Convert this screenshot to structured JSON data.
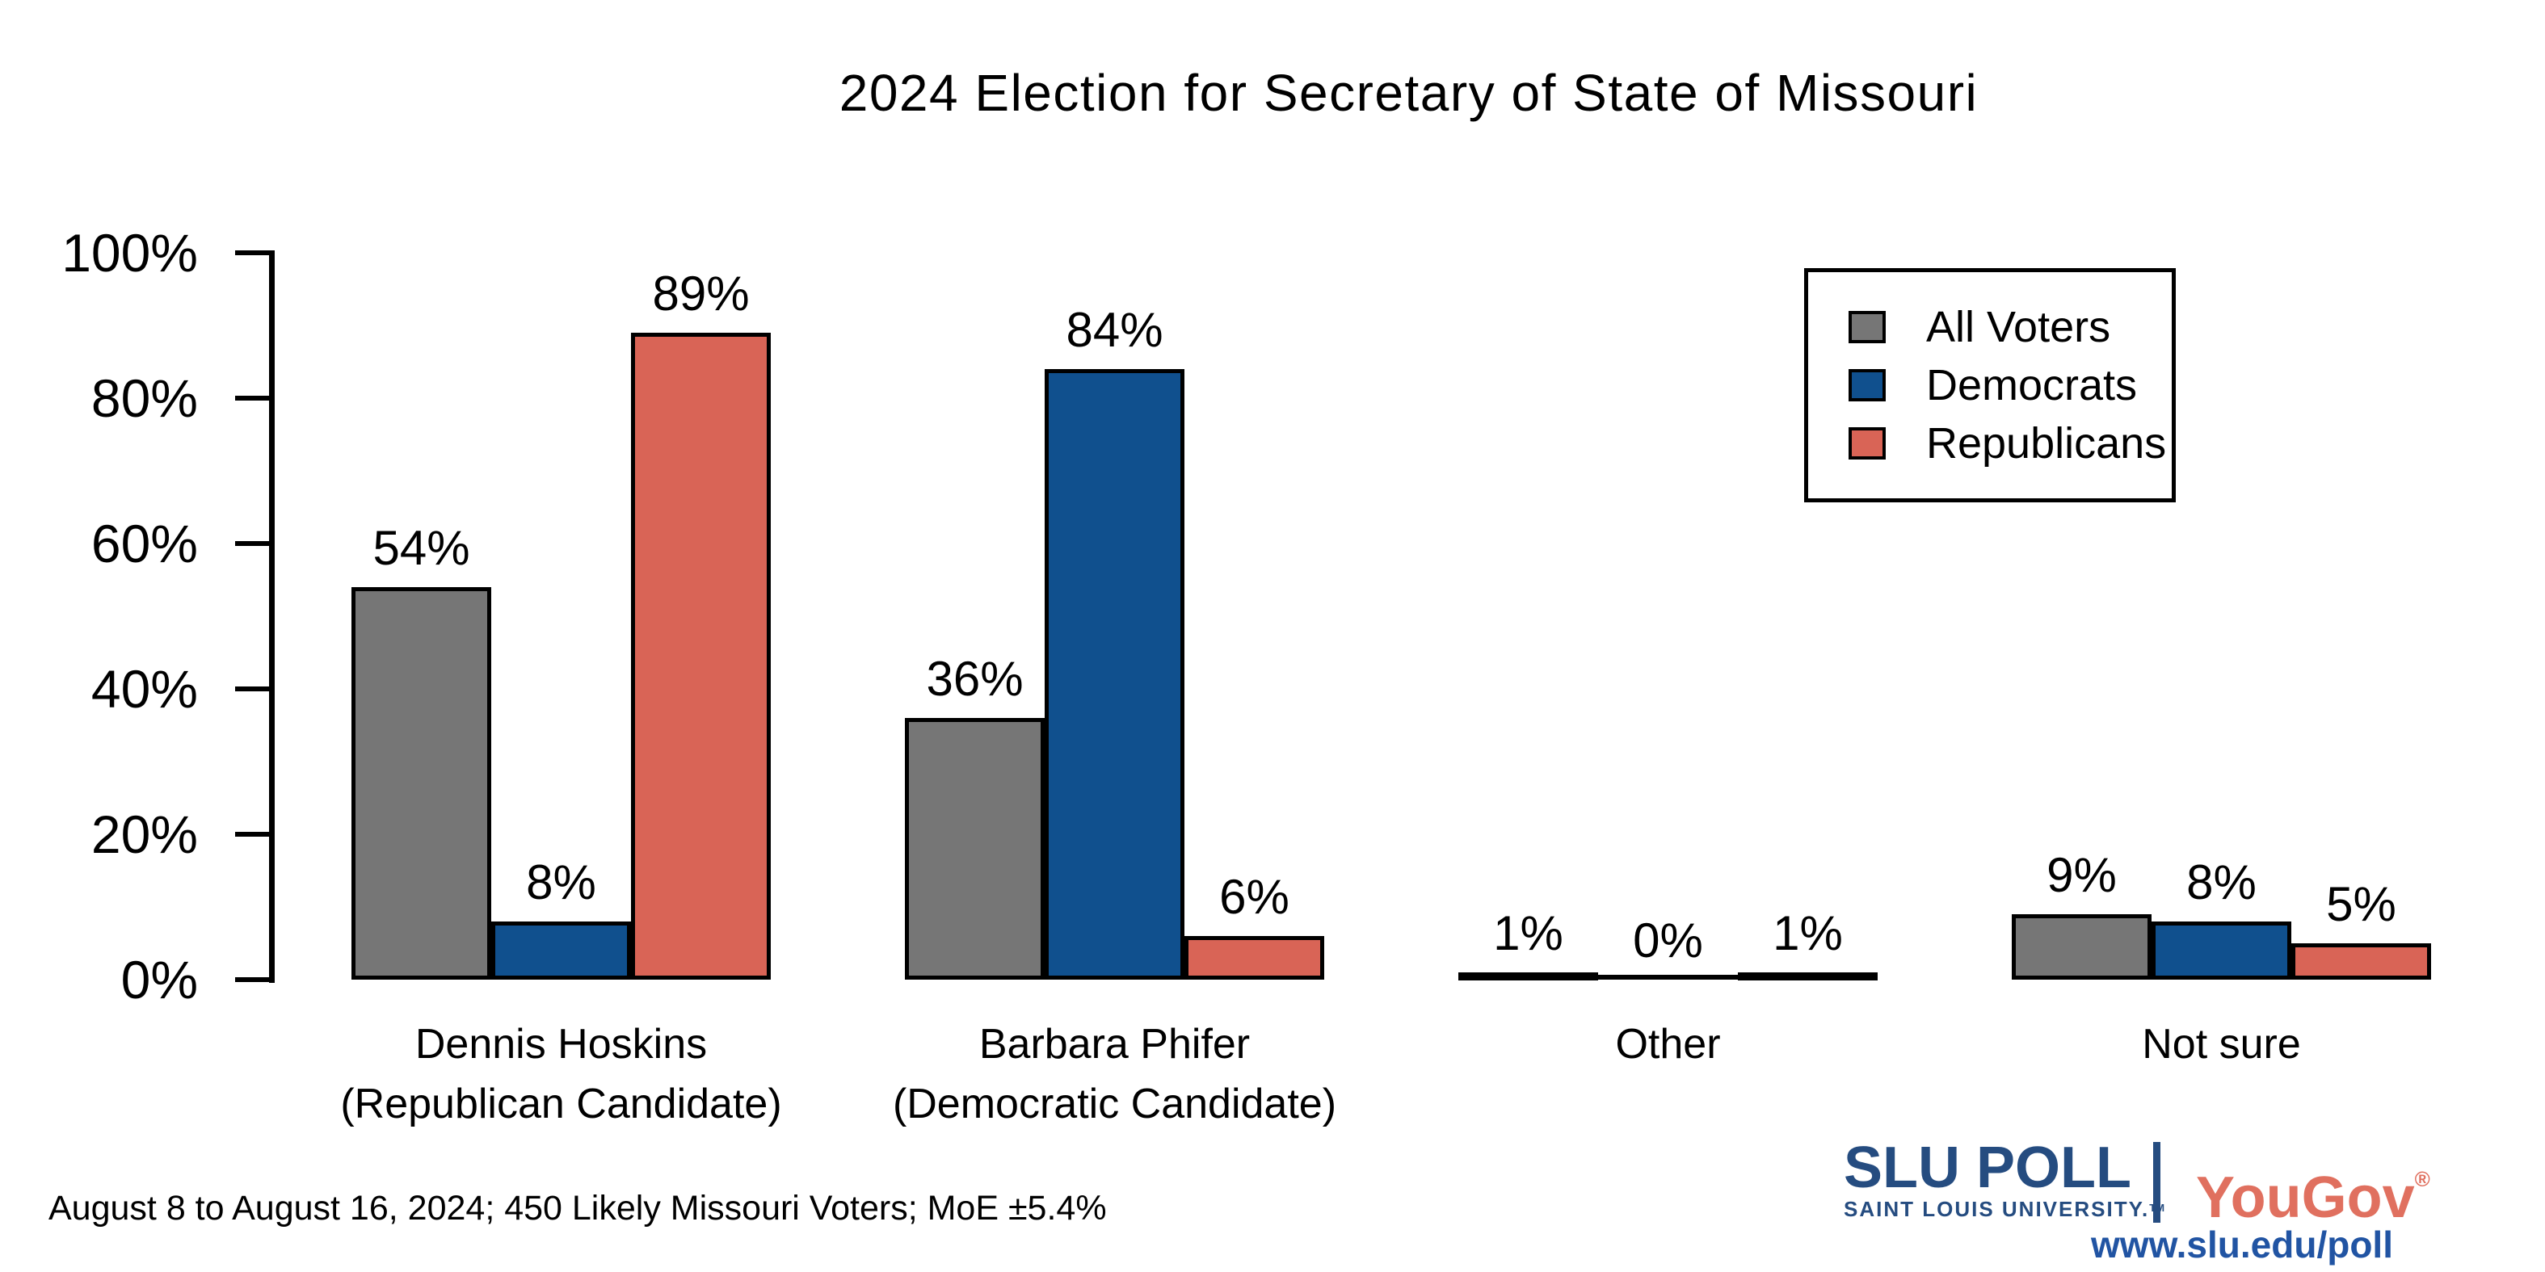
{
  "title": "2024 Election for Secretary of State of Missouri",
  "chart_data": {
    "type": "bar",
    "categories": [
      "Dennis Hoskins (Republican Candidate)",
      "Barbara Phifer (Democratic Candidate)",
      "Other",
      "Not sure"
    ],
    "category_lines": [
      [
        "Dennis Hoskins",
        "(Republican Candidate)"
      ],
      [
        "Barbara Phifer",
        "(Democratic Candidate)"
      ],
      [
        "Other"
      ],
      [
        "Not sure"
      ]
    ],
    "series": [
      {
        "name": "All Voters",
        "color": "#767676",
        "values": [
          54,
          36,
          1,
          9
        ],
        "labels": [
          "54%",
          "36%",
          "1%",
          "9%"
        ]
      },
      {
        "name": "Democrats",
        "color": "#10508E",
        "values": [
          8,
          84,
          0,
          8
        ],
        "labels": [
          "8%",
          "84%",
          "0%",
          "8%"
        ]
      },
      {
        "name": "Republicans",
        "color": "#D96456",
        "values": [
          89,
          6,
          1,
          5
        ],
        "labels": [
          "89%",
          "6%",
          "1%",
          "5%"
        ]
      }
    ],
    "ylim": [
      0,
      100
    ],
    "yticks": [
      0,
      20,
      40,
      60,
      80,
      100
    ],
    "ytick_labels": [
      "0%",
      "20%",
      "40%",
      "60%",
      "80%",
      "100%"
    ],
    "grid": false,
    "legend_position": "top-right"
  },
  "footer": {
    "note": "August 8 to August 16, 2024; 450 Likely Missouri Voters; MoE ±5.4%"
  },
  "branding": {
    "slu_poll": "SLU POLL",
    "slu_sub": "SAINT LOUIS UNIVERSITY.",
    "slu_tm": "TM",
    "yougov": "YouGov",
    "yougov_reg": "®",
    "url": "www.slu.edu/poll",
    "slu_blue": "#254C80",
    "yougov_red": "#E0705F",
    "url_blue": "#2154A3"
  }
}
